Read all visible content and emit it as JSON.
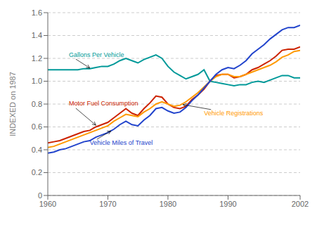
{
  "chart_data": {
    "type": "line",
    "title": "",
    "ylabel": "INDEXED on 1987",
    "x": [
      1960,
      1961,
      1962,
      1963,
      1964,
      1965,
      1966,
      1967,
      1968,
      1969,
      1970,
      1971,
      1972,
      1973,
      1974,
      1975,
      1976,
      1977,
      1978,
      1979,
      1980,
      1981,
      1982,
      1983,
      1984,
      1985,
      1986,
      1987,
      1988,
      1989,
      1990,
      1991,
      1992,
      1993,
      1994,
      1995,
      1996,
      1997,
      1998,
      1999,
      2000,
      2001,
      2002
    ],
    "series": [
      {
        "name": "Gallons Per Vehicle",
        "color": "#009999",
        "values": [
          1.1,
          1.1,
          1.1,
          1.1,
          1.1,
          1.1,
          1.11,
          1.11,
          1.12,
          1.13,
          1.13,
          1.15,
          1.18,
          1.2,
          1.18,
          1.16,
          1.19,
          1.21,
          1.23,
          1.2,
          1.13,
          1.08,
          1.05,
          1.02,
          1.04,
          1.06,
          1.1,
          1.0,
          0.99,
          0.98,
          0.97,
          0.96,
          0.97,
          0.97,
          0.99,
          1.0,
          0.99,
          1.01,
          1.03,
          1.05,
          1.05,
          1.03,
          1.03
        ]
      },
      {
        "name": "Motor Fuel Consumption",
        "color": "#cc2200",
        "values": [
          0.46,
          0.47,
          0.48,
          0.5,
          0.52,
          0.54,
          0.56,
          0.57,
          0.6,
          0.62,
          0.64,
          0.68,
          0.72,
          0.76,
          0.72,
          0.7,
          0.76,
          0.81,
          0.87,
          0.86,
          0.8,
          0.77,
          0.76,
          0.78,
          0.84,
          0.88,
          0.93,
          1.0,
          1.05,
          1.06,
          1.06,
          1.03,
          1.04,
          1.06,
          1.1,
          1.12,
          1.15,
          1.18,
          1.22,
          1.27,
          1.28,
          1.28,
          1.3
        ]
      },
      {
        "name": "Vehicle Registrations",
        "color": "#ff9900",
        "values": [
          0.42,
          0.43,
          0.45,
          0.47,
          0.49,
          0.51,
          0.53,
          0.55,
          0.57,
          0.59,
          0.61,
          0.65,
          0.68,
          0.71,
          0.7,
          0.69,
          0.73,
          0.76,
          0.8,
          0.82,
          0.8,
          0.78,
          0.79,
          0.82,
          0.86,
          0.9,
          0.95,
          1.0,
          1.04,
          1.06,
          1.06,
          1.04,
          1.04,
          1.06,
          1.08,
          1.1,
          1.12,
          1.14,
          1.17,
          1.21,
          1.23,
          1.26,
          1.27
        ]
      },
      {
        "name": "Vehicle Miles of Travel",
        "color": "#2244cc",
        "values": [
          0.37,
          0.38,
          0.4,
          0.41,
          0.43,
          0.45,
          0.47,
          0.48,
          0.51,
          0.53,
          0.55,
          0.58,
          0.62,
          0.65,
          0.62,
          0.61,
          0.66,
          0.7,
          0.76,
          0.77,
          0.74,
          0.72,
          0.73,
          0.77,
          0.83,
          0.88,
          0.94,
          1.0,
          1.06,
          1.1,
          1.12,
          1.11,
          1.14,
          1.18,
          1.24,
          1.28,
          1.32,
          1.37,
          1.41,
          1.45,
          1.47,
          1.47,
          1.49
        ]
      }
    ],
    "xlim": [
      1960,
      2002
    ],
    "xticks": [
      1960,
      1970,
      1980,
      1990,
      2002
    ],
    "ylim": [
      0,
      1.6
    ],
    "yticks": [
      0,
      0.2,
      0.4,
      0.6,
      0.8,
      {
        "value": 1.0,
        "label": "1.0"
      },
      1.2,
      1.4,
      1.6
    ],
    "grid": true,
    "annotations": [
      {
        "text": "Gallons Per Vehicle",
        "xy": [
          1967.0,
          1.115
        ],
        "xytext": [
          1963.5,
          1.23
        ],
        "color": "#009999"
      },
      {
        "text": "Motor Fuel Consumption",
        "xy": [
          1968.0,
          0.615
        ],
        "xytext": [
          1963.5,
          0.8
        ],
        "color": "#cc2200"
      },
      {
        "text": "Vehicle Registrations",
        "xy": [
          1982.5,
          0.795
        ],
        "xytext": [
          1986.0,
          0.715
        ],
        "color": "#ff9900"
      },
      {
        "text": "Vehicle Miles of Travel",
        "xy": [
          1970.5,
          0.565
        ],
        "xytext": [
          1967.0,
          0.455
        ],
        "color": "#2244cc"
      }
    ]
  }
}
